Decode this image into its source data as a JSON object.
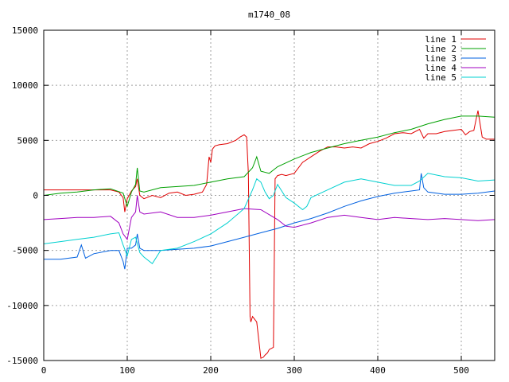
{
  "chart_data": {
    "type": "line",
    "title": "m1740_08",
    "xlabel": "",
    "ylabel": "",
    "xlim": [
      0,
      540
    ],
    "ylim": [
      -15000,
      15000
    ],
    "xticks": [
      0,
      100,
      200,
      300,
      400,
      500
    ],
    "yticks": [
      -15000,
      -10000,
      -5000,
      0,
      5000,
      10000,
      15000
    ],
    "grid": true,
    "legend_position": "top-right",
    "series": [
      {
        "name": "line 1",
        "color": "#e00000",
        "x": [
          0,
          50,
          80,
          90,
          95,
          97,
          100,
          105,
          110,
          112,
          115,
          120,
          130,
          140,
          150,
          160,
          170,
          180,
          190,
          195,
          198,
          200,
          202,
          205,
          210,
          220,
          230,
          235,
          240,
          243,
          245,
          247,
          248,
          250,
          255,
          260,
          263,
          265,
          268,
          270,
          275,
          277,
          280,
          285,
          290,
          300,
          310,
          320,
          330,
          340,
          350,
          360,
          370,
          380,
          390,
          400,
          410,
          420,
          430,
          440,
          450,
          455,
          460,
          470,
          480,
          490,
          500,
          505,
          510,
          515,
          518,
          520,
          525,
          530,
          540
        ],
        "y": [
          500,
          500,
          500,
          300,
          -200,
          -1500,
          -300,
          400,
          800,
          1500,
          0,
          -300,
          0,
          -200,
          200,
          300,
          0,
          100,
          300,
          1000,
          3500,
          3000,
          4200,
          4500,
          4600,
          4700,
          5000,
          5300,
          5500,
          5300,
          2000,
          -11000,
          -11500,
          -11000,
          -11500,
          -14800,
          -14700,
          -14500,
          -14300,
          -14000,
          -13800,
          1500,
          1800,
          1900,
          1800,
          2000,
          3000,
          3500,
          4000,
          4400,
          4400,
          4300,
          4400,
          4300,
          4700,
          4900,
          5200,
          5600,
          5700,
          5600,
          6000,
          5200,
          5600,
          5600,
          5800,
          5900,
          6000,
          5500,
          5800,
          5900,
          7000,
          7700,
          5300,
          5100,
          5100
        ]
      },
      {
        "name": "line 2",
        "color": "#00a000",
        "x": [
          0,
          20,
          40,
          60,
          80,
          95,
          100,
          105,
          110,
          112,
          115,
          120,
          140,
          160,
          180,
          200,
          220,
          240,
          250,
          255,
          260,
          270,
          280,
          300,
          320,
          340,
          360,
          380,
          400,
          420,
          440,
          460,
          480,
          500,
          520,
          540
        ],
        "y": [
          0,
          200,
          300,
          500,
          600,
          200,
          -1000,
          300,
          1000,
          2500,
          400,
          300,
          700,
          800,
          900,
          1200,
          1500,
          1700,
          2500,
          3500,
          2200,
          2000,
          2600,
          3300,
          3900,
          4300,
          4700,
          5000,
          5300,
          5700,
          6000,
          6500,
          6900,
          7200,
          7200,
          7100
        ]
      },
      {
        "name": "line 3",
        "color": "#0060e0",
        "x": [
          0,
          20,
          40,
          45,
          50,
          60,
          80,
          90,
          95,
          97,
          100,
          105,
          110,
          112,
          115,
          120,
          140,
          160,
          180,
          200,
          220,
          240,
          260,
          280,
          300,
          320,
          340,
          360,
          380,
          400,
          420,
          440,
          450,
          452,
          455,
          460,
          480,
          500,
          520,
          540
        ],
        "y": [
          -5800,
          -5800,
          -5600,
          -4500,
          -5700,
          -5300,
          -5000,
          -5000,
          -6000,
          -6700,
          -4800,
          -4800,
          -4500,
          -3500,
          -4800,
          -5000,
          -5000,
          -4900,
          -4800,
          -4600,
          -4200,
          -3800,
          -3400,
          -3000,
          -2500,
          -2100,
          -1600,
          -1000,
          -500,
          -100,
          200,
          400,
          500,
          2000,
          700,
          300,
          100,
          100,
          200,
          400
        ]
      },
      {
        "name": "line 4",
        "color": "#a000c0",
        "x": [
          0,
          20,
          40,
          60,
          80,
          90,
          95,
          100,
          105,
          110,
          112,
          115,
          120,
          140,
          160,
          180,
          200,
          220,
          240,
          260,
          280,
          290,
          300,
          320,
          340,
          360,
          380,
          400,
          420,
          440,
          460,
          480,
          500,
          520,
          540
        ],
        "y": [
          -2200,
          -2100,
          -2000,
          -2000,
          -1900,
          -2500,
          -3500,
          -4000,
          -2000,
          -1500,
          0,
          -1500,
          -1700,
          -1500,
          -2000,
          -2000,
          -1800,
          -1500,
          -1200,
          -1300,
          -2200,
          -2800,
          -2900,
          -2500,
          -2000,
          -1800,
          -2000,
          -2200,
          -2000,
          -2100,
          -2200,
          -2100,
          -2200,
          -2300,
          -2200
        ]
      },
      {
        "name": "line 5",
        "color": "#00d0d0",
        "x": [
          0,
          20,
          40,
          60,
          80,
          90,
          95,
          100,
          105,
          110,
          115,
          120,
          130,
          140,
          160,
          180,
          200,
          220,
          240,
          250,
          255,
          260,
          265,
          270,
          275,
          280,
          290,
          300,
          310,
          315,
          320,
          340,
          360,
          380,
          400,
          420,
          440,
          450,
          460,
          480,
          500,
          520,
          540
        ],
        "y": [
          -4400,
          -4200,
          -4000,
          -3800,
          -3500,
          -3400,
          -4500,
          -5500,
          -4000,
          -3800,
          -5200,
          -5600,
          -6200,
          -5000,
          -4800,
          -4200,
          -3500,
          -2500,
          -1200,
          500,
          1500,
          1200,
          300,
          -300,
          0,
          1000,
          -200,
          -700,
          -1300,
          -1000,
          -200,
          500,
          1200,
          1500,
          1200,
          900,
          900,
          1300,
          2000,
          1700,
          1600,
          1300,
          1400
        ]
      }
    ]
  }
}
